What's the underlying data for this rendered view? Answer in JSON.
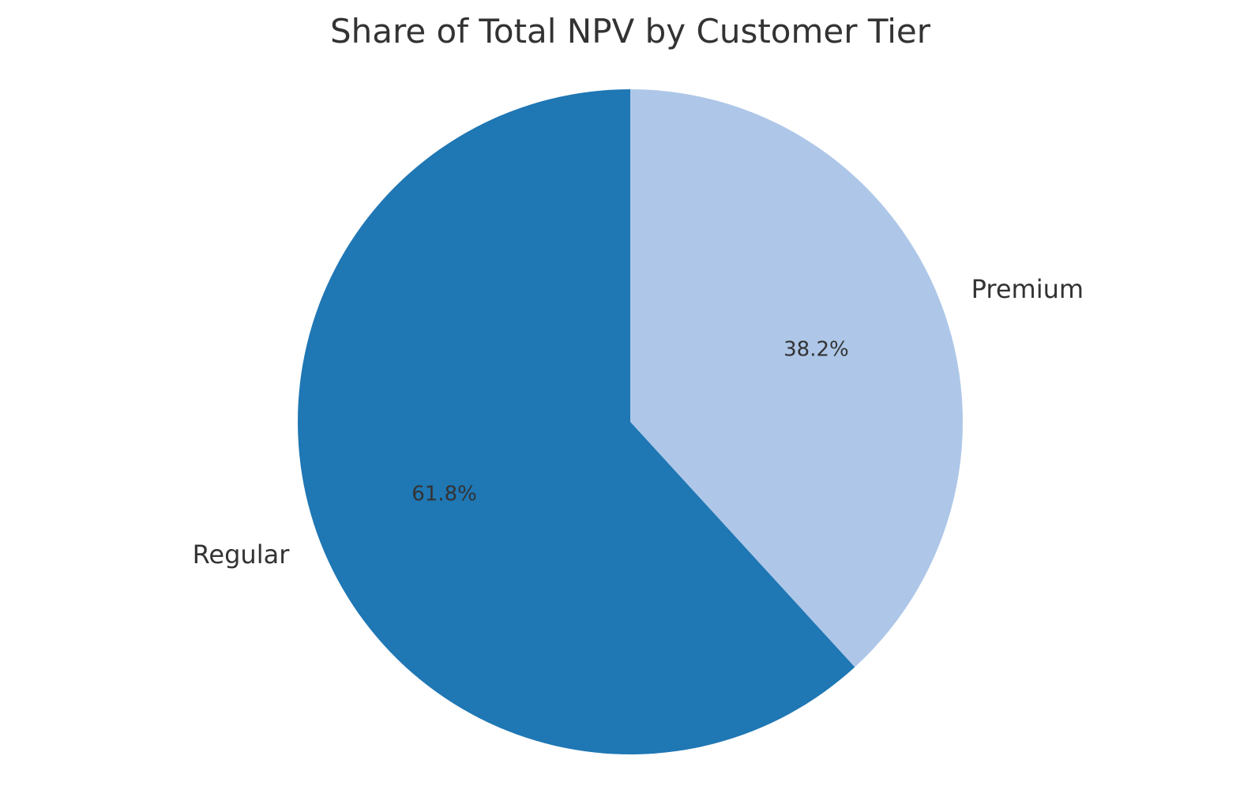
{
  "chart_data": {
    "type": "pie",
    "title": "Share of Total NPV by Customer Tier",
    "start_angle_deg": 90,
    "direction": "clockwise",
    "slices": [
      {
        "label": "Premium",
        "value": 38.2,
        "pct_label": "38.2%",
        "color": "#aec7e8"
      },
      {
        "label": "Regular",
        "value": 61.8,
        "pct_label": "61.8%",
        "color": "#1f77b4"
      }
    ]
  }
}
